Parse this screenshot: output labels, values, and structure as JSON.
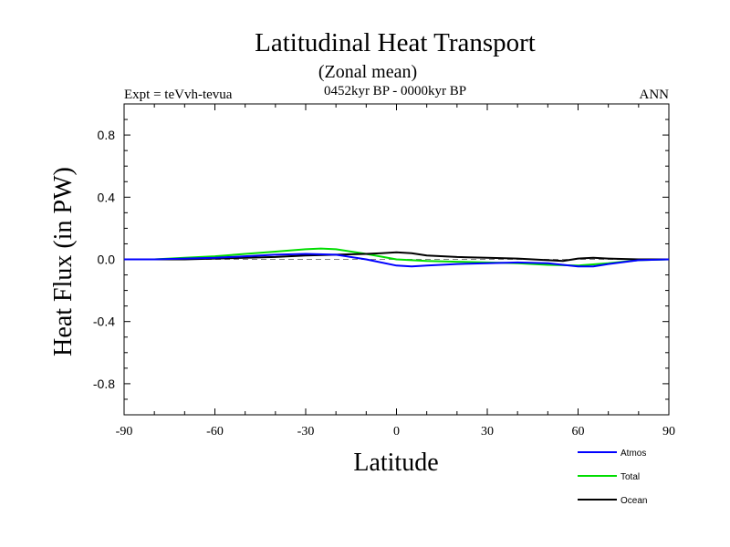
{
  "chart_data": {
    "type": "line",
    "title": "Latitudinal Heat Transport",
    "subtitle": "(Zonal mean)",
    "period": "0452kyr BP - 0000kyr BP",
    "experiment": "Expt = teVvh-tevua",
    "season": "ANN",
    "xlabel": "Latitude",
    "ylabel": "Heat Flux (in PW)",
    "xlim": [
      -90,
      90
    ],
    "ylim": [
      -1.0,
      1.0
    ],
    "xticks": [
      -90,
      -60,
      -30,
      0,
      30,
      60,
      90
    ],
    "xtick_labels": [
      "-90",
      "-60",
      "-30",
      "0",
      "30",
      "60",
      "90"
    ],
    "yticks": [
      -0.8,
      -0.4,
      0.0,
      0.4,
      0.8
    ],
    "ytick_labels": [
      "-0.8",
      "-0.4",
      "0.0",
      "0.4",
      "0.8"
    ],
    "grid": false,
    "legend_position": "bottom-right",
    "zero_line": {
      "style": "dashed",
      "color": "#808080"
    },
    "series": [
      {
        "name": "Atmos",
        "color": "#0000ff",
        "x": [
          -90,
          -80,
          -70,
          -60,
          -50,
          -40,
          -30,
          -20,
          -10,
          0,
          5,
          10,
          20,
          30,
          40,
          50,
          60,
          65,
          70,
          80,
          90
        ],
        "y": [
          0.0,
          0.0,
          0.005,
          0.01,
          0.02,
          0.03,
          0.035,
          0.03,
          0.0,
          -0.04,
          -0.045,
          -0.04,
          -0.03,
          -0.025,
          -0.02,
          -0.025,
          -0.045,
          -0.045,
          -0.03,
          -0.005,
          0.0
        ]
      },
      {
        "name": "Total",
        "color": "#00dd00",
        "x": [
          -90,
          -80,
          -70,
          -60,
          -50,
          -40,
          -30,
          -25,
          -20,
          -10,
          0,
          10,
          20,
          30,
          40,
          50,
          60,
          70,
          80,
          90
        ],
        "y": [
          0.0,
          0.0,
          0.01,
          0.02,
          0.035,
          0.05,
          0.065,
          0.07,
          0.065,
          0.035,
          0.0,
          -0.01,
          -0.015,
          -0.02,
          -0.025,
          -0.035,
          -0.04,
          -0.025,
          -0.005,
          0.0
        ]
      },
      {
        "name": "Ocean",
        "color": "#000000",
        "x": [
          -90,
          -80,
          -70,
          -60,
          -50,
          -40,
          -30,
          -20,
          -10,
          -5,
          0,
          5,
          10,
          20,
          30,
          40,
          50,
          55,
          60,
          65,
          70,
          80,
          90
        ],
        "y": [
          0.0,
          0.0,
          0.0,
          0.005,
          0.01,
          0.015,
          0.025,
          0.03,
          0.035,
          0.04,
          0.045,
          0.04,
          0.025,
          0.015,
          0.01,
          0.005,
          -0.005,
          -0.01,
          0.005,
          0.01,
          0.005,
          0.0,
          0.0
        ]
      }
    ]
  }
}
